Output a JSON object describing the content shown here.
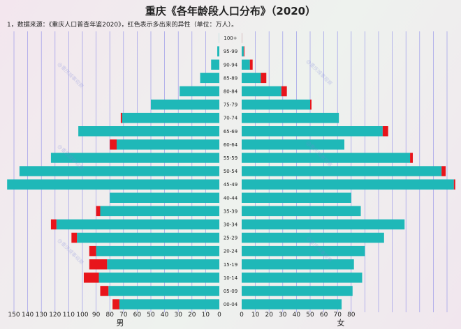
{
  "chart_data": {
    "type": "bar",
    "orientation": "horizontal-population-pyramid",
    "title": "重庆《各年龄段人口分布》（2020）",
    "note": "1，数据来源：《重庆人口普查年鉴2020》，红色表示多出来的异性（单位：万人）。",
    "left_label": "男",
    "right_label": "女",
    "categories": [
      "100+",
      "95-99",
      "90-94",
      "85-89",
      "80-84",
      "75-79",
      "70-74",
      "65-69",
      "60-64",
      "55-59",
      "50-54",
      "45-49",
      "40-44",
      "35-39",
      "30-34",
      "25-29",
      "20-24",
      "15-19",
      "10-14",
      "05-09",
      "00-04"
    ],
    "series": [
      {
        "name": "男",
        "values": [
          0.1,
          1.5,
          6,
          14,
          29,
          50,
          72,
          103,
          80,
          123,
          146,
          155,
          80,
          90,
          123,
          108,
          95,
          95,
          99,
          87,
          78
        ]
      },
      {
        "name": "女",
        "values": [
          0.2,
          2,
          8,
          18,
          33,
          51,
          71,
          107,
          75,
          125,
          149,
          156,
          80,
          87,
          119,
          104,
          90,
          82,
          88,
          81,
          73
        ]
      }
    ],
    "x_ticks_left": [
      150,
      140,
      130,
      120,
      110,
      100,
      90,
      80,
      70,
      60,
      50,
      40,
      30,
      20,
      10,
      0
    ],
    "x_ticks_right": [
      0,
      10,
      20,
      30,
      40,
      50,
      60,
      70,
      80
    ],
    "xlim": [
      0,
      160
    ],
    "grid": true,
    "colors": {
      "bar": "#1fb8b8",
      "excess": "#e8151b",
      "grid": "#7e7ee8"
    },
    "watermark": "@重庆城事观察"
  }
}
